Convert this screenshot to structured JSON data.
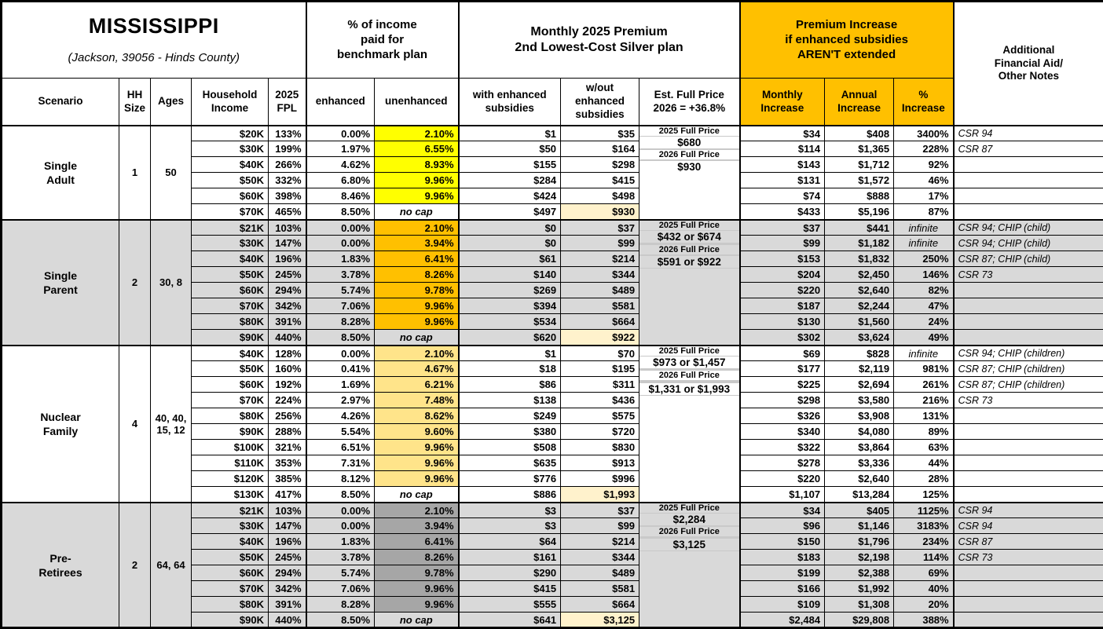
{
  "title": {
    "state": "MISSISSIPPI",
    "location": "(Jackson, 39056 - Hinds County)"
  },
  "header": {
    "pct_income_group": "% of income\npaid for\nbenchmark plan",
    "premium_group": "Monthly 2025 Premium\n2nd Lowest-Cost Silver plan",
    "increase_group": "Premium Increase\nif enhanced subsidies\nAREN'T extended",
    "notes_group": "Additional\nFinancial Aid/\nOther Notes",
    "cols": {
      "scenario": "Scenario",
      "hh_size": "HH\nSize",
      "ages": "Ages",
      "income": "Household\nIncome",
      "fpl": "2025\nFPL",
      "enhanced": "enhanced",
      "unenhanced": "unenhanced",
      "with_sub": "with enhanced\nsubsidies",
      "wout_sub": "w/out\nenhanced\nsubsidies",
      "est_full": "Est. Full Price\n2026 = +36.8%",
      "monthly": "Monthly\nIncrease",
      "annual": "Annual\nIncrease",
      "pct": "%\nIncrease"
    }
  },
  "colors": {
    "header_accent": "#FFC000",
    "row_shade": "#D9D9D9",
    "full_price_highlight": "#FFF2CC",
    "single_adult_highlight": "#FFFF00",
    "single_parent_highlight": "#FFC000",
    "nuclear_family_highlight": "#FFE48A",
    "pre_retirees_highlight": "#A6A6A6"
  },
  "sections": [
    {
      "name": "Single\nAdult",
      "hh_size": "1",
      "ages": "50",
      "shaded": false,
      "unenhanced_color": "#FFFF00",
      "est_full_slots": [
        "2025 Full Price",
        "$680",
        "",
        "2026 Full Price",
        "",
        "$930"
      ],
      "rows": [
        {
          "income": "$20K",
          "fpl": "133%",
          "enhanced": "0.00%",
          "unenhanced": "2.10%",
          "with_sub": "$1",
          "wout_sub": "$35",
          "monthly": "$34",
          "annual": "$408",
          "pct": "3400%",
          "notes": "CSR 94"
        },
        {
          "income": "$30K",
          "fpl": "199%",
          "enhanced": "1.97%",
          "unenhanced": "6.55%",
          "with_sub": "$50",
          "wout_sub": "$164",
          "monthly": "$114",
          "annual": "$1,365",
          "pct": "228%",
          "notes": "CSR 87"
        },
        {
          "income": "$40K",
          "fpl": "266%",
          "enhanced": "4.62%",
          "unenhanced": "8.93%",
          "with_sub": "$155",
          "wout_sub": "$298",
          "monthly": "$143",
          "annual": "$1,712",
          "pct": "92%",
          "notes": ""
        },
        {
          "income": "$50K",
          "fpl": "332%",
          "enhanced": "6.80%",
          "unenhanced": "9.96%",
          "with_sub": "$284",
          "wout_sub": "$415",
          "monthly": "$131",
          "annual": "$1,572",
          "pct": "46%",
          "notes": ""
        },
        {
          "income": "$60K",
          "fpl": "398%",
          "enhanced": "8.46%",
          "unenhanced": "9.96%",
          "with_sub": "$424",
          "wout_sub": "$498",
          "monthly": "$74",
          "annual": "$888",
          "pct": "17%",
          "notes": ""
        },
        {
          "income": "$70K",
          "fpl": "465%",
          "enhanced": "8.50%",
          "unenhanced": "no cap",
          "with_sub": "$497",
          "wout_sub": "$930",
          "monthly": "$433",
          "annual": "$5,196",
          "pct": "87%",
          "notes": ""
        }
      ]
    },
    {
      "name": "Single\nParent",
      "hh_size": "2",
      "ages": "30, 8",
      "shaded": true,
      "unenhanced_color": "#FFC000",
      "est_full_slots": [
        "2025 Full Price",
        "$432 or $674",
        "",
        "",
        "2026 Full Price",
        "",
        "$591 or $922",
        ""
      ],
      "rows": [
        {
          "income": "$21K",
          "fpl": "103%",
          "enhanced": "0.00%",
          "unenhanced": "2.10%",
          "with_sub": "$0",
          "wout_sub": "$37",
          "monthly": "$37",
          "annual": "$441",
          "pct": "infinite",
          "notes": "CSR 94; CHIP (child)"
        },
        {
          "income": "$30K",
          "fpl": "147%",
          "enhanced": "0.00%",
          "unenhanced": "3.94%",
          "with_sub": "$0",
          "wout_sub": "$99",
          "monthly": "$99",
          "annual": "$1,182",
          "pct": "infinite",
          "notes": "CSR 94; CHIP (child)"
        },
        {
          "income": "$40K",
          "fpl": "196%",
          "enhanced": "1.83%",
          "unenhanced": "6.41%",
          "with_sub": "$61",
          "wout_sub": "$214",
          "monthly": "$153",
          "annual": "$1,832",
          "pct": "250%",
          "notes": "CSR 87; CHIP (child)"
        },
        {
          "income": "$50K",
          "fpl": "245%",
          "enhanced": "3.78%",
          "unenhanced": "8.26%",
          "with_sub": "$140",
          "wout_sub": "$344",
          "monthly": "$204",
          "annual": "$2,450",
          "pct": "146%",
          "notes": "CSR 73"
        },
        {
          "income": "$60K",
          "fpl": "294%",
          "enhanced": "5.74%",
          "unenhanced": "9.78%",
          "with_sub": "$269",
          "wout_sub": "$489",
          "monthly": "$220",
          "annual": "$2,640",
          "pct": "82%",
          "notes": ""
        },
        {
          "income": "$70K",
          "fpl": "342%",
          "enhanced": "7.06%",
          "unenhanced": "9.96%",
          "with_sub": "$394",
          "wout_sub": "$581",
          "monthly": "$187",
          "annual": "$2,244",
          "pct": "47%",
          "notes": ""
        },
        {
          "income": "$80K",
          "fpl": "391%",
          "enhanced": "8.28%",
          "unenhanced": "9.96%",
          "with_sub": "$534",
          "wout_sub": "$664",
          "monthly": "$130",
          "annual": "$1,560",
          "pct": "24%",
          "notes": ""
        },
        {
          "income": "$90K",
          "fpl": "440%",
          "enhanced": "8.50%",
          "unenhanced": "no cap",
          "with_sub": "$620",
          "wout_sub": "$922",
          "monthly": "$302",
          "annual": "$3,624",
          "pct": "49%",
          "notes": ""
        }
      ]
    },
    {
      "name": "Nuclear\nFamily",
      "hh_size": "4",
      "ages": "40, 40,\n15, 12",
      "shaded": false,
      "unenhanced_color": "#FFE48A",
      "est_full_slots": [
        "2025 Full Price",
        "$973 or $1,457",
        "",
        "",
        "2026 Full Price",
        "",
        "",
        "",
        "$1,331 or $1,993",
        ""
      ],
      "rows": [
        {
          "income": "$40K",
          "fpl": "128%",
          "enhanced": "0.00%",
          "unenhanced": "2.10%",
          "with_sub": "$1",
          "wout_sub": "$70",
          "monthly": "$69",
          "annual": "$828",
          "pct": "infinite",
          "notes": "CSR 94; CHIP (children)"
        },
        {
          "income": "$50K",
          "fpl": "160%",
          "enhanced": "0.41%",
          "unenhanced": "4.67%",
          "with_sub": "$18",
          "wout_sub": "$195",
          "monthly": "$177",
          "annual": "$2,119",
          "pct": "981%",
          "notes": "CSR 87; CHIP (children)"
        },
        {
          "income": "$60K",
          "fpl": "192%",
          "enhanced": "1.69%",
          "unenhanced": "6.21%",
          "with_sub": "$86",
          "wout_sub": "$311",
          "monthly": "$225",
          "annual": "$2,694",
          "pct": "261%",
          "notes": "CSR 87; CHIP (children)"
        },
        {
          "income": "$70K",
          "fpl": "224%",
          "enhanced": "2.97%",
          "unenhanced": "7.48%",
          "with_sub": "$138",
          "wout_sub": "$436",
          "monthly": "$298",
          "annual": "$3,580",
          "pct": "216%",
          "notes": "CSR 73"
        },
        {
          "income": "$80K",
          "fpl": "256%",
          "enhanced": "4.26%",
          "unenhanced": "8.62%",
          "with_sub": "$249",
          "wout_sub": "$575",
          "monthly": "$326",
          "annual": "$3,908",
          "pct": "131%",
          "notes": ""
        },
        {
          "income": "$90K",
          "fpl": "288%",
          "enhanced": "5.54%",
          "unenhanced": "9.60%",
          "with_sub": "$380",
          "wout_sub": "$720",
          "monthly": "$340",
          "annual": "$4,080",
          "pct": "89%",
          "notes": ""
        },
        {
          "income": "$100K",
          "fpl": "321%",
          "enhanced": "6.51%",
          "unenhanced": "9.96%",
          "with_sub": "$508",
          "wout_sub": "$830",
          "monthly": "$322",
          "annual": "$3,864",
          "pct": "63%",
          "notes": ""
        },
        {
          "income": "$110K",
          "fpl": "353%",
          "enhanced": "7.31%",
          "unenhanced": "9.96%",
          "with_sub": "$635",
          "wout_sub": "$913",
          "monthly": "$278",
          "annual": "$3,336",
          "pct": "44%",
          "notes": ""
        },
        {
          "income": "$120K",
          "fpl": "385%",
          "enhanced": "8.12%",
          "unenhanced": "9.96%",
          "with_sub": "$776",
          "wout_sub": "$996",
          "monthly": "$220",
          "annual": "$2,640",
          "pct": "28%",
          "notes": ""
        },
        {
          "income": "$130K",
          "fpl": "417%",
          "enhanced": "8.50%",
          "unenhanced": "no cap",
          "with_sub": "$886",
          "wout_sub": "$1,993",
          "monthly": "$1,107",
          "annual": "$13,284",
          "pct": "125%",
          "notes": ""
        }
      ]
    },
    {
      "name": "Pre-\nRetirees",
      "hh_size": "2",
      "ages": "64, 64",
      "shaded": true,
      "unenhanced_color": "#A6A6A6",
      "est_full_slots": [
        "2025 Full Price",
        "$2,284",
        "",
        "2026 Full Price",
        "",
        "",
        "$3,125",
        ""
      ],
      "rows": [
        {
          "income": "$21K",
          "fpl": "103%",
          "enhanced": "0.00%",
          "unenhanced": "2.10%",
          "with_sub": "$3",
          "wout_sub": "$37",
          "monthly": "$34",
          "annual": "$405",
          "pct": "1125%",
          "notes": "CSR 94"
        },
        {
          "income": "$30K",
          "fpl": "147%",
          "enhanced": "0.00%",
          "unenhanced": "3.94%",
          "with_sub": "$3",
          "wout_sub": "$99",
          "monthly": "$96",
          "annual": "$1,146",
          "pct": "3183%",
          "notes": "CSR 94"
        },
        {
          "income": "$40K",
          "fpl": "196%",
          "enhanced": "1.83%",
          "unenhanced": "6.41%",
          "with_sub": "$64",
          "wout_sub": "$214",
          "monthly": "$150",
          "annual": "$1,796",
          "pct": "234%",
          "notes": "CSR 87"
        },
        {
          "income": "$50K",
          "fpl": "245%",
          "enhanced": "3.78%",
          "unenhanced": "8.26%",
          "with_sub": "$161",
          "wout_sub": "$344",
          "monthly": "$183",
          "annual": "$2,198",
          "pct": "114%",
          "notes": "CSR 73"
        },
        {
          "income": "$60K",
          "fpl": "294%",
          "enhanced": "5.74%",
          "unenhanced": "9.78%",
          "with_sub": "$290",
          "wout_sub": "$489",
          "monthly": "$199",
          "annual": "$2,388",
          "pct": "69%",
          "notes": ""
        },
        {
          "income": "$70K",
          "fpl": "342%",
          "enhanced": "7.06%",
          "unenhanced": "9.96%",
          "with_sub": "$415",
          "wout_sub": "$581",
          "monthly": "$166",
          "annual": "$1,992",
          "pct": "40%",
          "notes": ""
        },
        {
          "income": "$80K",
          "fpl": "391%",
          "enhanced": "8.28%",
          "unenhanced": "9.96%",
          "with_sub": "$555",
          "wout_sub": "$664",
          "monthly": "$109",
          "annual": "$1,308",
          "pct": "20%",
          "notes": ""
        },
        {
          "income": "$90K",
          "fpl": "440%",
          "enhanced": "8.50%",
          "unenhanced": "no cap",
          "with_sub": "$641",
          "wout_sub": "$3,125",
          "monthly": "$2,484",
          "annual": "$29,808",
          "pct": "388%",
          "notes": ""
        }
      ]
    }
  ]
}
